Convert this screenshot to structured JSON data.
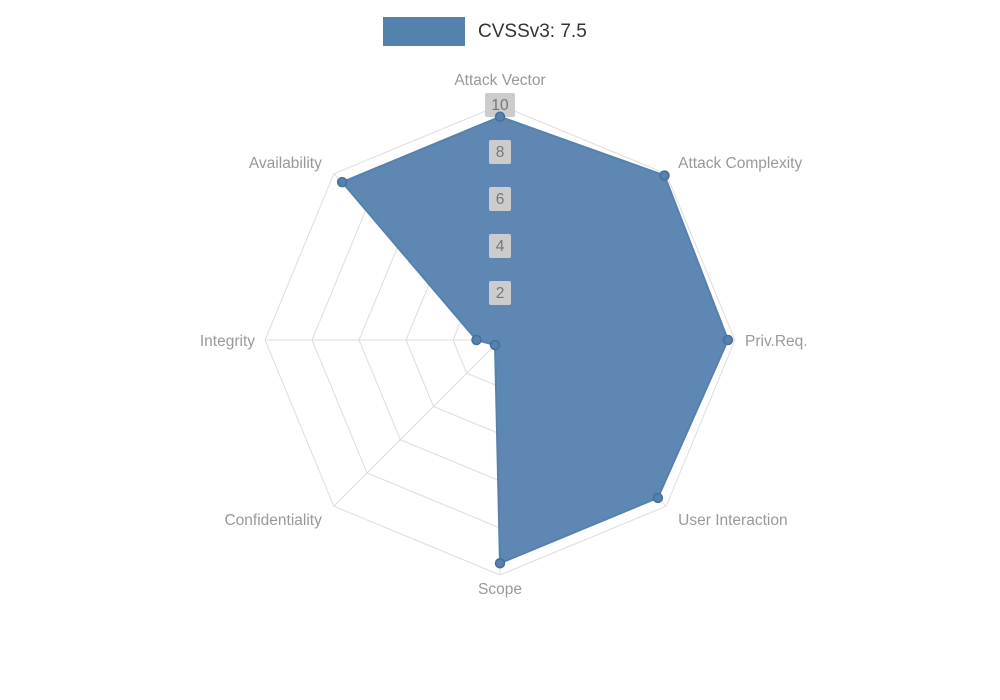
{
  "legend": {
    "label": "CVSSv3: 7.5",
    "swatch_color": "#5581af"
  },
  "chart_data": {
    "type": "radar",
    "title": "CVSSv3: 7.5",
    "categories": [
      "Attack Vector",
      "Attack Complexity",
      "Priv.Req.",
      "User Interaction",
      "Scope",
      "Confidentiality",
      "Integrity",
      "Availability"
    ],
    "series": [
      {
        "name": "CVSSv3: 7.5",
        "values": [
          9.5,
          9.9,
          9.7,
          9.5,
          9.5,
          0.3,
          1,
          9.5
        ]
      }
    ],
    "max": 10,
    "ticks": [
      2,
      4,
      6,
      8,
      10
    ],
    "grid": true,
    "legend_position": "top",
    "colors": {
      "series": "#5581af",
      "series_dark": "#46709c",
      "grid": "#dddddd",
      "axis_label": "#999999",
      "tick_box": "#cccccc",
      "tick_text": "#777777",
      "legend_text": "#333333"
    }
  }
}
